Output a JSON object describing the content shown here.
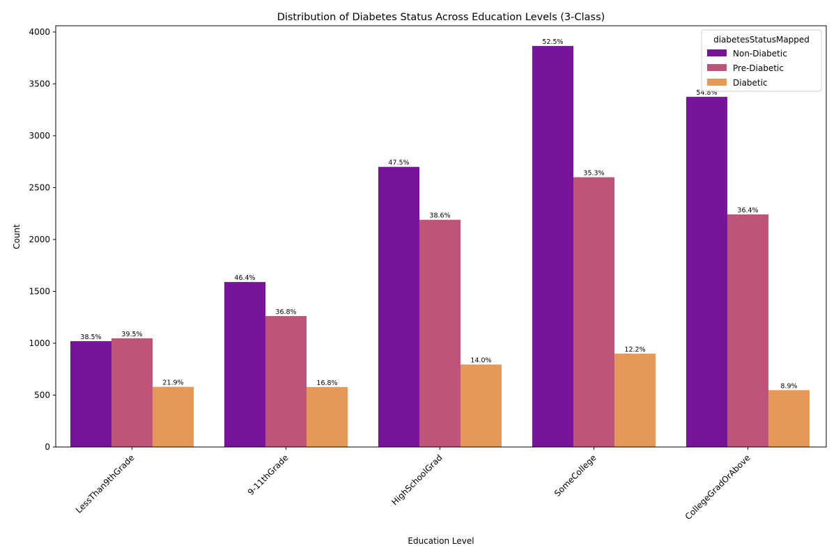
{
  "chart_data": {
    "type": "bar",
    "title": "Distribution of Diabetes Status Across Education Levels (3-Class)",
    "xlabel": "Education Level",
    "ylabel": "Count",
    "ylim": [
      0,
      4060
    ],
    "yticks": [
      0,
      500,
      1000,
      1500,
      2000,
      2500,
      3000,
      3500,
      4000
    ],
    "categories": [
      "LessThan9thGrade",
      "9-11thGrade",
      "HighSchoolGrad",
      "SomeCollege",
      "CollegeGradOrAbove"
    ],
    "legend": {
      "title": "diabetesStatusMapped",
      "position": "top-right"
    },
    "grid": false,
    "series": [
      {
        "name": "Non-Diabetic",
        "color": "#76159a",
        "values": [
          1020,
          1590,
          2700,
          3865,
          3375
        ],
        "labels": [
          "38.5%",
          "46.4%",
          "47.5%",
          "52.5%",
          "54.8%"
        ]
      },
      {
        "name": "Pre-Diabetic",
        "color": "#bc5579",
        "values": [
          1048,
          1262,
          2190,
          2600,
          2242
        ],
        "labels": [
          "39.5%",
          "36.8%",
          "38.6%",
          "35.3%",
          "36.4%"
        ]
      },
      {
        "name": "Diabetic",
        "color": "#e39957",
        "values": [
          580,
          578,
          795,
          900,
          548
        ],
        "labels": [
          "21.9%",
          "16.8%",
          "14.0%",
          "12.2%",
          "8.9%"
        ]
      }
    ]
  }
}
